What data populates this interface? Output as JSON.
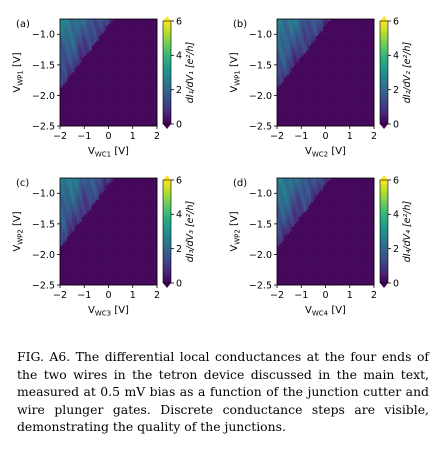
{
  "figure": {
    "colorscale": [
      "#440154",
      "#482878",
      "#3e4a89",
      "#31688e",
      "#26828e",
      "#1f9e89",
      "#35b779",
      "#6ece58",
      "#b5de2b",
      "#fde725"
    ],
    "panels": [
      {
        "label": "(a)",
        "ylabel_main": "V",
        "ylabel_sub": "WP1",
        "ylabel_unit": " [V]",
        "xlabel_main": "V",
        "xlabel_sub": "WC1",
        "xlabel_unit": " [V]",
        "cbar_label": "dI₁/dV₁ [e²/h]"
      },
      {
        "label": "(b)",
        "ylabel_main": "V",
        "ylabel_sub": "WP1",
        "ylabel_unit": " [V]",
        "xlabel_main": "V",
        "xlabel_sub": "WC2",
        "xlabel_unit": " [V]",
        "cbar_label": "dI₂/dV₂ [e²/h]"
      },
      {
        "label": "(c)",
        "ylabel_main": "V",
        "ylabel_sub": "WP2",
        "ylabel_unit": " [V]",
        "xlabel_main": "V",
        "xlabel_sub": "WC3",
        "xlabel_unit": " [V]",
        "cbar_label": "dI₃/dV₃ [e²/h]"
      },
      {
        "label": "(d)",
        "ylabel_main": "V",
        "ylabel_sub": "WP2",
        "ylabel_unit": " [V]",
        "xlabel_main": "V",
        "xlabel_sub": "WC4",
        "xlabel_unit": " [V]",
        "cbar_label": "dI₄/dV₄ [e²/h]"
      }
    ],
    "x_ticks": [
      "−2",
      "−1",
      "0",
      "1",
      "2"
    ],
    "y_ticks": [
      "−1.0",
      "−1.5",
      "−2.0",
      "−2.5"
    ],
    "cbar_ticks": [
      "6",
      "4",
      "2",
      "0"
    ]
  },
  "chart_data": [
    {
      "type": "heatmap",
      "panel": "(a)",
      "xlim": [
        -2,
        2
      ],
      "ylim": [
        -2.5,
        -0.75
      ],
      "clim": [
        0,
        6
      ],
      "xlabel": "V_WC1 [V]",
      "ylabel": "V_WP1 [V]",
      "colorbar_label": "dI1/dV1 [e^2/h]",
      "cbar_ticks": [
        0,
        2,
        4,
        6
      ],
      "x_ticks": [
        -2,
        -1,
        0,
        1,
        2
      ],
      "y_ticks": [
        -1.0,
        -1.5,
        -2.0,
        -2.5
      ]
    },
    {
      "type": "heatmap",
      "panel": "(b)",
      "xlim": [
        -2,
        2
      ],
      "ylim": [
        -2.5,
        -0.75
      ],
      "clim": [
        0,
        6
      ],
      "xlabel": "V_WC2 [V]",
      "ylabel": "V_WP1 [V]",
      "colorbar_label": "dI2/dV2 [e^2/h]",
      "cbar_ticks": [
        0,
        2,
        4,
        6
      ],
      "x_ticks": [
        -2,
        -1,
        0,
        1,
        2
      ],
      "y_ticks": [
        -1.0,
        -1.5,
        -2.0,
        -2.5
      ]
    },
    {
      "type": "heatmap",
      "panel": "(c)",
      "xlim": [
        -2,
        2
      ],
      "ylim": [
        -2.5,
        -0.75
      ],
      "clim": [
        0,
        6
      ],
      "xlabel": "V_WC3 [V]",
      "ylabel": "V_WP2 [V]",
      "colorbar_label": "dI3/dV3 [e^2/h]",
      "cbar_ticks": [
        0,
        2,
        4,
        6
      ],
      "x_ticks": [
        -2,
        -1,
        0,
        1,
        2
      ],
      "y_ticks": [
        -1.0,
        -1.5,
        -2.0,
        -2.5
      ]
    },
    {
      "type": "heatmap",
      "panel": "(d)",
      "xlim": [
        -2,
        2
      ],
      "ylim": [
        -2.5,
        -0.75
      ],
      "clim": [
        0,
        6
      ],
      "xlabel": "V_WC4 [V]",
      "ylabel": "V_WP2 [V]",
      "colorbar_label": "dI4/dV4 [e^2/h]",
      "cbar_ticks": [
        0,
        2,
        4,
        6
      ],
      "x_ticks": [
        -2,
        -1,
        0,
        1,
        2
      ],
      "y_ticks": [
        -1.0,
        -1.5,
        -2.0,
        -2.5
      ]
    }
  ],
  "caption": {
    "label": "FIG. A6.",
    "text": " The differential local conductances at the four ends of the two wires in the tetron device discussed in the main text, measured at 0.5 mV bias as a function of the junction cutter and wire plunger gates. Discrete conductance steps are visible, demonstrating the quality of the junctions."
  }
}
